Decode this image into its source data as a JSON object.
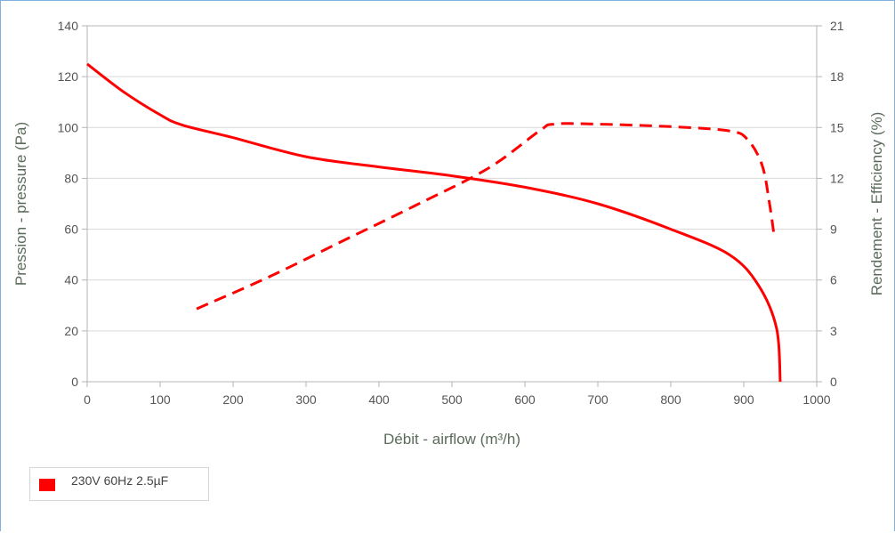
{
  "chart_data": {
    "type": "line",
    "title": "",
    "xlabel": "Débit - airflow (m³/h)",
    "ylabel": "Pression - pressure (Pa)",
    "y2label": "Rendement - Efficiency (%)",
    "xlim": [
      0,
      1000
    ],
    "ylim": [
      0,
      140
    ],
    "y2lim": [
      0,
      21
    ],
    "x_ticks": [
      "0",
      "100",
      "200",
      "300",
      "400",
      "500",
      "600",
      "700",
      "800",
      "900",
      "1000"
    ],
    "y_ticks": [
      "0",
      "20",
      "40",
      "60",
      "80",
      "100",
      "120",
      "140"
    ],
    "y2_ticks": [
      "0",
      "3",
      "6",
      "9",
      "12",
      "15",
      "18",
      "21"
    ],
    "grid": true,
    "legend_position": "bottom-left",
    "series": [
      {
        "name": "230V 60Hz 2.5µF",
        "axis": "left",
        "style": "solid",
        "color": "#ff0000",
        "x": [
          0,
          50,
          100,
          130,
          200,
          300,
          400,
          500,
          600,
          700,
          800,
          880,
          920,
          945,
          950
        ],
        "y": [
          125,
          114,
          105,
          101,
          96,
          88.5,
          84.5,
          81,
          76.5,
          70,
          60,
          50,
          38,
          21,
          0
        ]
      },
      {
        "axis": "right",
        "style": "dashed",
        "color": "#ff0000",
        "x": [
          150,
          250,
          350,
          450,
          550,
          620,
          640,
          700,
          800,
          880,
          905,
          925,
          935,
          942
        ],
        "y": [
          4.3,
          6.2,
          8.3,
          10.4,
          12.6,
          14.8,
          15.2,
          15.2,
          15.05,
          14.8,
          14.3,
          12.8,
          10.6,
          8.5
        ]
      }
    ]
  },
  "legend": {
    "label": "230V 60Hz 2.5µF",
    "color": "#ff0000"
  }
}
